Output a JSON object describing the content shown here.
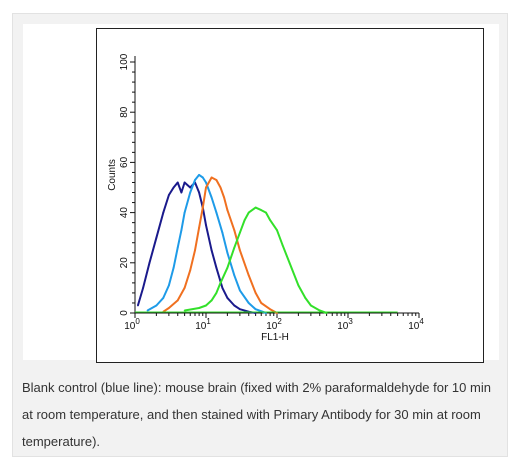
{
  "caption": "Blank control (blue line): mouse brain (fixed with 2% paraformaldehyde for 10 min at room temperature, and then stained with Primary Antibody for 30 min at room temperature).",
  "chart_data": {
    "type": "line",
    "xlabel": "FL1-H",
    "ylabel": "Counts",
    "xscale": "log",
    "xlim": [
      1,
      10000
    ],
    "ylim": [
      0,
      100
    ],
    "grid": false,
    "x_ticks": [
      {
        "base": "10",
        "exp": "0"
      },
      {
        "base": "10",
        "exp": "1"
      },
      {
        "base": "10",
        "exp": "2"
      },
      {
        "base": "10",
        "exp": "3"
      },
      {
        "base": "10",
        "exp": "4"
      }
    ],
    "y_ticks": [
      "0",
      "20",
      "40",
      "60",
      "80",
      "100"
    ],
    "series": [
      {
        "color": "#1a1a8c",
        "x": [
          1.1,
          1.3,
          1.6,
          2.0,
          2.5,
          3.0,
          3.5,
          4.0,
          4.5,
          5.0,
          6.0,
          7.0,
          8.0,
          9.0,
          10,
          12,
          14,
          17,
          20,
          25,
          30,
          40,
          50
        ],
        "y": [
          3,
          10,
          20,
          30,
          40,
          47,
          50,
          52,
          48,
          52,
          50,
          52,
          48,
          42,
          35,
          25,
          18,
          10,
          6,
          3,
          1.5,
          0.5,
          0
        ]
      },
      {
        "color": "#1e9be8",
        "x": [
          1.5,
          2.0,
          2.5,
          3.0,
          3.5,
          4.0,
          4.5,
          5.0,
          6.0,
          7.0,
          8.0,
          9.0,
          10,
          12,
          14,
          17,
          20,
          25,
          30,
          40,
          50,
          70
        ],
        "y": [
          1,
          3,
          6,
          11,
          18,
          26,
          33,
          40,
          48,
          53,
          55,
          54,
          52,
          46,
          40,
          32,
          24,
          15,
          9,
          4,
          1.5,
          0
        ]
      },
      {
        "color": "#f07020",
        "x": [
          2.5,
          3.0,
          4.0,
          5.0,
          6.0,
          7.0,
          8.0,
          9.0,
          10,
          12,
          14,
          16,
          18,
          20,
          25,
          30,
          40,
          50,
          60,
          80,
          100
        ],
        "y": [
          0.5,
          2,
          5,
          10,
          17,
          25,
          34,
          42,
          50,
          54,
          53,
          50,
          46,
          41,
          33,
          25,
          15,
          8,
          4,
          1.5,
          0
        ]
      },
      {
        "color": "#33e02a",
        "x": [
          5,
          8,
          10,
          12,
          14,
          16,
          20,
          25,
          30,
          35,
          40,
          50,
          60,
          70,
          80,
          100,
          120,
          150,
          200,
          250,
          300,
          400,
          500
        ],
        "y": [
          1,
          2,
          3,
          5,
          8,
          12,
          18,
          26,
          32,
          37,
          40,
          42,
          41,
          40,
          37,
          33,
          27,
          20,
          11,
          6,
          3,
          1,
          0
        ]
      }
    ]
  }
}
